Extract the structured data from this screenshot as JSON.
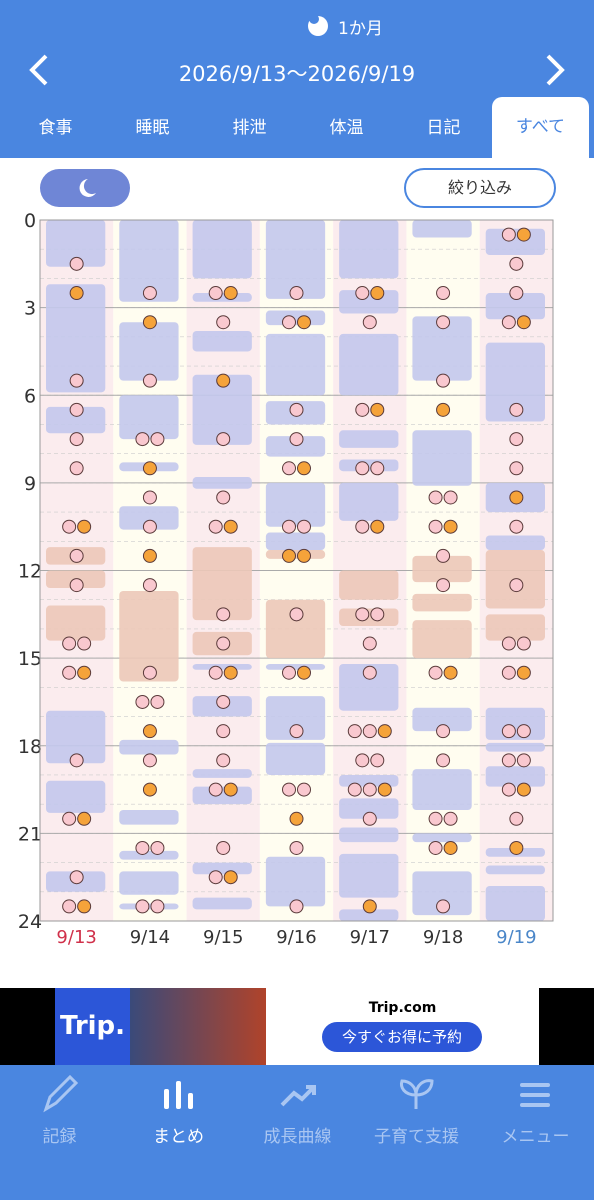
{
  "header": {
    "range_tab": "1か月",
    "date_range": "2026/9/13〜2026/9/19",
    "tabs": [
      "食事",
      "睡眠",
      "排泄",
      "体温",
      "日記",
      "すべて"
    ],
    "active_tab": 5
  },
  "filter_button": "絞り込み",
  "chart_data": {
    "type": "schedule",
    "ylim": [
      0,
      24
    ],
    "yticks": [
      0,
      3,
      6,
      9,
      12,
      15,
      18,
      21,
      24
    ],
    "colors": {
      "blue_block": "#c3c8ec",
      "beige_block": "#ecc8b8",
      "pink": "#f9c8cf",
      "orange": "#f5a33a",
      "weekend_sun": "#d0304a",
      "weekend_sat": "#4a86c8"
    },
    "days": [
      {
        "label": "9/13",
        "blue_blocks": [
          [
            0,
            1.6
          ],
          [
            2.2,
            5.9
          ],
          [
            6.4,
            7.3
          ],
          [
            16.8,
            18.6
          ],
          [
            19.2,
            20.3
          ],
          [
            22.3,
            23.0
          ]
        ],
        "beige_blocks": [
          [
            11.2,
            11.8
          ],
          [
            12.0,
            12.6
          ],
          [
            13.2,
            14.4
          ]
        ],
        "pink": [
          1.5,
          5.5,
          6.5,
          7.5,
          8.5,
          10.5,
          11.5,
          12.5,
          14.5,
          14.5,
          15.5,
          18.5,
          20.5,
          22.5,
          23.5
        ],
        "orange": [
          2.5,
          10.5,
          15.5,
          20.5,
          23.5
        ]
      },
      {
        "label": "9/14",
        "blue_blocks": [
          [
            0,
            2.8
          ],
          [
            3.5,
            5.5
          ],
          [
            6.0,
            7.5
          ],
          [
            8.3,
            8.6
          ],
          [
            9.8,
            10.6
          ],
          [
            17.8,
            18.3
          ],
          [
            20.2,
            20.7
          ],
          [
            21.6,
            21.9
          ],
          [
            22.3,
            23.1
          ],
          [
            23.4,
            23.6
          ]
        ],
        "beige_blocks": [
          [
            12.7,
            15.8
          ]
        ],
        "pink": [
          2.5,
          5.5,
          7.5,
          7.5,
          9.5,
          10.5,
          12.5,
          15.5,
          16.5,
          16.5,
          18.5,
          21.5,
          21.5,
          23.5,
          23.5
        ],
        "orange": [
          3.5,
          8.5,
          11.5,
          17.5,
          19.5
        ]
      },
      {
        "label": "9/15",
        "blue_blocks": [
          [
            0,
            2.0
          ],
          [
            2.5,
            2.8
          ],
          [
            3.8,
            4.5
          ],
          [
            5.3,
            7.7
          ],
          [
            8.8,
            9.2
          ],
          [
            15.2,
            15.4
          ],
          [
            16.3,
            17.0
          ],
          [
            18.8,
            19.1
          ],
          [
            19.4,
            20.0
          ],
          [
            22.0,
            22.4
          ],
          [
            23.2,
            23.6
          ]
        ],
        "beige_blocks": [
          [
            11.2,
            13.7
          ],
          [
            14.1,
            14.9
          ]
        ],
        "pink": [
          2.5,
          3.5,
          7.5,
          9.5,
          10.5,
          13.5,
          14.5,
          15.5,
          16.5,
          17.5,
          18.5,
          19.5,
          21.5,
          22.5
        ],
        "orange": [
          2.5,
          5.5,
          10.5,
          15.5,
          19.5,
          22.5
        ]
      },
      {
        "label": "9/16",
        "blue_blocks": [
          [
            0,
            2.7
          ],
          [
            3.1,
            3.6
          ],
          [
            3.9,
            6.0
          ],
          [
            6.2,
            7.0
          ],
          [
            7.4,
            8.1
          ],
          [
            9.0,
            10.5
          ],
          [
            10.7,
            11.3
          ],
          [
            15.2,
            15.4
          ],
          [
            16.3,
            17.8
          ],
          [
            17.9,
            19.0
          ],
          [
            21.8,
            23.5
          ]
        ],
        "beige_blocks": [
          [
            11.3,
            11.6
          ],
          [
            13.0,
            15.0
          ]
        ],
        "pink": [
          2.5,
          3.5,
          6.5,
          7.5,
          8.5,
          10.5,
          10.5,
          13.5,
          15.5,
          17.5,
          19.5,
          19.5,
          21.5,
          23.5
        ],
        "orange": [
          3.5,
          8.5,
          11.5,
          11.5,
          15.5,
          20.5
        ]
      },
      {
        "label": "9/17",
        "blue_blocks": [
          [
            0,
            2.0
          ],
          [
            2.4,
            3.2
          ],
          [
            3.9,
            6.0
          ],
          [
            7.2,
            7.8
          ],
          [
            8.2,
            8.6
          ],
          [
            9.0,
            10.3
          ],
          [
            15.2,
            16.8
          ],
          [
            19.0,
            19.4
          ],
          [
            19.8,
            20.5
          ],
          [
            20.8,
            21.3
          ],
          [
            21.7,
            23.2
          ],
          [
            23.6,
            24
          ]
        ],
        "beige_blocks": [
          [
            12.0,
            13.0
          ],
          [
            13.3,
            13.9
          ]
        ],
        "pink": [
          2.5,
          3.5,
          6.5,
          8.5,
          8.5,
          10.5,
          13.5,
          13.5,
          14.5,
          15.5,
          17.5,
          17.5,
          18.5,
          18.5,
          19.5,
          19.5,
          20.5
        ],
        "orange": [
          2.5,
          6.5,
          10.5,
          17.5,
          19.5,
          23.5
        ]
      },
      {
        "label": "9/18",
        "blue_blocks": [
          [
            0,
            0.6
          ],
          [
            3.3,
            5.5
          ],
          [
            7.2,
            9.1
          ],
          [
            16.7,
            17.5
          ],
          [
            18.8,
            20.2
          ],
          [
            21.0,
            21.3
          ],
          [
            22.3,
            23.8
          ]
        ],
        "beige_blocks": [
          [
            11.5,
            12.4
          ],
          [
            12.8,
            13.4
          ],
          [
            13.7,
            15.0
          ]
        ],
        "pink": [
          2.5,
          3.5,
          5.5,
          9.5,
          9.5,
          10.5,
          11.5,
          12.5,
          15.5,
          17.5,
          18.5,
          20.5,
          20.5,
          21.5,
          23.5
        ],
        "orange": [
          6.5,
          10.5,
          15.5,
          21.5
        ]
      },
      {
        "label": "9/19",
        "blue_blocks": [
          [
            0.3,
            1.2
          ],
          [
            2.5,
            3.4
          ],
          [
            4.2,
            6.9
          ],
          [
            9.0,
            10.0
          ],
          [
            10.8,
            11.3
          ],
          [
            16.7,
            17.8
          ],
          [
            17.9,
            18.2
          ],
          [
            18.7,
            19.4
          ],
          [
            21.5,
            21.8
          ],
          [
            22.1,
            22.4
          ],
          [
            22.8,
            24
          ]
        ],
        "beige_blocks": [
          [
            11.3,
            13.3
          ],
          [
            13.5,
            14.4
          ]
        ],
        "pink": [
          0.5,
          1.5,
          2.5,
          3.5,
          6.5,
          7.5,
          8.5,
          10.5,
          12.5,
          14.5,
          14.5,
          15.5,
          17.5,
          17.5,
          18.5,
          18.5,
          19.5,
          20.5
        ],
        "orange": [
          0.5,
          3.5,
          9.5,
          15.5,
          19.5,
          21.5
        ]
      }
    ]
  },
  "ad": {
    "brand": "Trip.",
    "site": "Trip.com",
    "cta": "今すぐお得に予約"
  },
  "nav": [
    "記録",
    "まとめ",
    "成長曲線",
    "子育て支援",
    "メニュー"
  ],
  "active_nav": 1
}
